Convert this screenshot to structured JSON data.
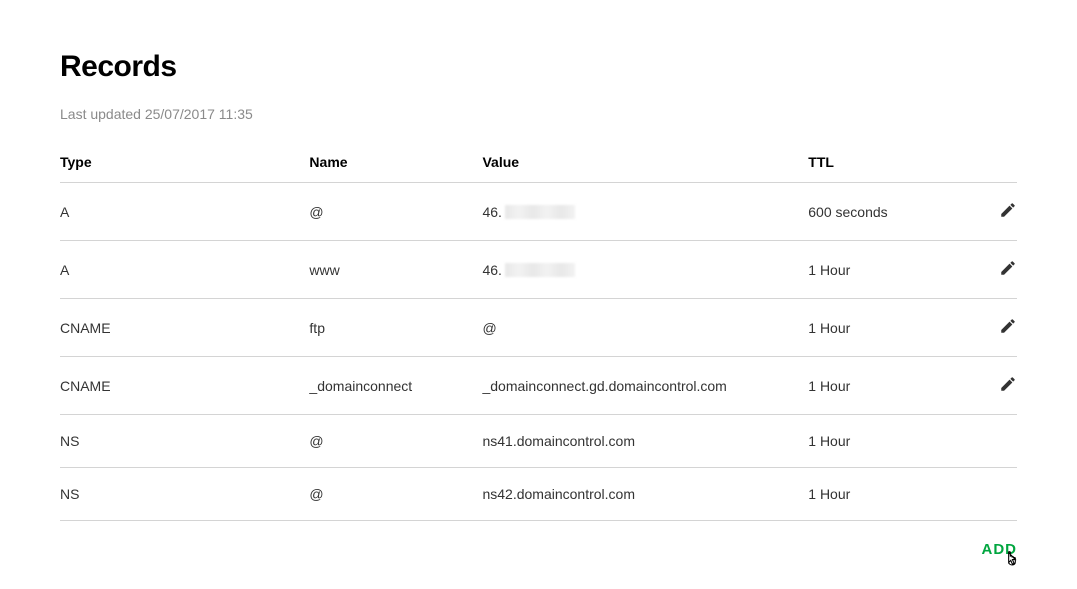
{
  "page": {
    "title": "Records",
    "last_updated": "Last updated 25/07/2017 11:35"
  },
  "table": {
    "headers": {
      "type": "Type",
      "name": "Name",
      "value": "Value",
      "ttl": "TTL"
    },
    "rows": [
      {
        "type": "A",
        "name": "@",
        "value_prefix": "46.",
        "value_redacted": true,
        "ttl": "600 seconds",
        "editable": true
      },
      {
        "type": "A",
        "name": "www",
        "value_prefix": "46.",
        "value_redacted": true,
        "ttl": "1 Hour",
        "editable": true
      },
      {
        "type": "CNAME",
        "name": "ftp",
        "value": "@",
        "ttl": "1 Hour",
        "editable": true
      },
      {
        "type": "CNAME",
        "name": "_domainconnect",
        "value": "_domainconnect.gd.domaincontrol.com",
        "ttl": "1 Hour",
        "editable": true
      },
      {
        "type": "NS",
        "name": "@",
        "value": "ns41.domaincontrol.com",
        "ttl": "1 Hour",
        "editable": false
      },
      {
        "type": "NS",
        "name": "@",
        "value": "ns42.domaincontrol.com",
        "ttl": "1 Hour",
        "editable": false
      }
    ]
  },
  "footer": {
    "add_label": "ADD"
  },
  "colors": {
    "accent": "#00a63f",
    "text": "#333333",
    "muted": "#8a8a8a",
    "border": "#d4d4d4"
  }
}
